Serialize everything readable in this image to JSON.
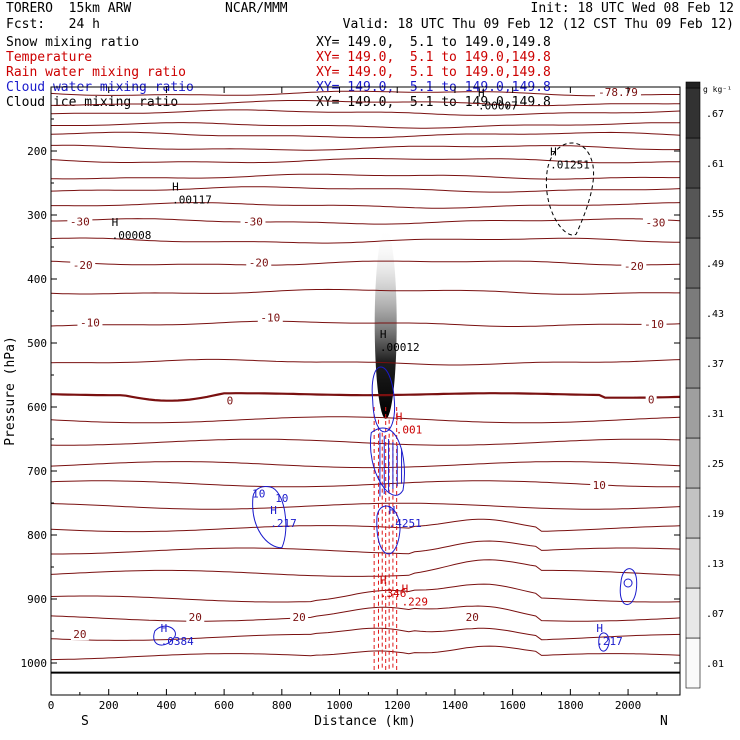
{
  "header": {
    "model": "TORERO  15km ARW",
    "center": "NCAR/MMM",
    "init": "Init: 18 UTC Wed 08 Feb 12",
    "fcst_label": "Fcst:",
    "fcst_value": "24 h",
    "valid": "Valid: 18 UTC Thu 09 Feb 12 (12 CST Thu 09 Feb 12)"
  },
  "fields": [
    {
      "name": "Snow mixing ratio",
      "xy": "XY= 149.0,  5.1 to 149.0,149.8",
      "color": "#000000"
    },
    {
      "name": "Temperature",
      "xy": "XY= 149.0,  5.1 to 149.0,149.8",
      "color": "#cc0000"
    },
    {
      "name": "Rain water mixing ratio",
      "xy": "XY= 149.0,  5.1 to 149.0,149.8",
      "color": "#cc0000"
    },
    {
      "name": "Cloud water mixing ratio",
      "xy": "XY= 149.0,  5.1 to 149.0,149.8",
      "color": "#1a1acc"
    },
    {
      "name": "Cloud ice mixing ratio",
      "xy": "XY= 149.0,  5.1 to 149.0,149.8",
      "color": "#000000"
    }
  ],
  "chart_data": {
    "type": "contour-cross-section",
    "xlabel": "Distance (km)",
    "ylabel": "Pressure (hPa)",
    "xlim": [
      0,
      2180
    ],
    "ylim": [
      1050,
      100
    ],
    "x_ticks": [
      0,
      200,
      400,
      600,
      800,
      1000,
      1200,
      1400,
      1600,
      1800,
      2000
    ],
    "y_ticks": [
      200,
      300,
      400,
      500,
      600,
      700,
      800,
      900,
      1000
    ],
    "x_end_labels": {
      "left": "S",
      "right": "N"
    },
    "colorbar": {
      "unit": "g kg⁻¹",
      "levels": [
        ".01",
        ".07",
        ".13",
        ".19",
        ".25",
        ".31",
        ".37",
        ".43",
        ".49",
        ".55",
        ".61",
        ".67"
      ]
    },
    "temperature_labels": [
      {
        "text": "-78.79",
        "x": 1965,
        "p": 108
      },
      {
        "text": "-30",
        "x": 100,
        "p": 310
      },
      {
        "text": "-30",
        "x": 700,
        "p": 310
      },
      {
        "text": "-30",
        "x": 2095,
        "p": 312
      },
      {
        "text": "-20",
        "x": 110,
        "p": 378
      },
      {
        "text": "-20",
        "x": 720,
        "p": 374
      },
      {
        "text": "-20",
        "x": 2020,
        "p": 380
      },
      {
        "text": "-10",
        "x": 135,
        "p": 468
      },
      {
        "text": "-10",
        "x": 760,
        "p": 460
      },
      {
        "text": "-10",
        "x": 2090,
        "p": 470
      },
      {
        "text": "0",
        "x": 620,
        "p": 590
      },
      {
        "text": "0",
        "x": 2080,
        "p": 588
      },
      {
        "text": "10",
        "x": 1900,
        "p": 722
      },
      {
        "text": "20",
        "x": 100,
        "p": 955
      },
      {
        "text": "20",
        "x": 500,
        "p": 928
      },
      {
        "text": "20",
        "x": 860,
        "p": 928
      },
      {
        "text": "20",
        "x": 1460,
        "p": 928
      }
    ],
    "maxima_labels": [
      {
        "text": "H",
        "value": ".00117",
        "x": 420,
        "p": 265,
        "color": "#000000"
      },
      {
        "text": "H",
        "value": ".00008",
        "x": 210,
        "p": 320,
        "color": "#000000"
      },
      {
        "text": "H",
        "value": ".01251",
        "x": 1730,
        "p": 210,
        "color": "#000000"
      },
      {
        "text": "H",
        "value": ".00012",
        "x": 1140,
        "p": 495,
        "color": "#000000"
      },
      {
        "text": "H",
        "value": ".00007",
        "x": 1480,
        "p": 118,
        "color": "#000000"
      },
      {
        "text": "H",
        "value": ".001",
        "x": 1195,
        "p": 624,
        "color": "#cc0000"
      },
      {
        "text": "H",
        "value": ".217",
        "x": 760,
        "p": 770,
        "color": "#1a1acc"
      },
      {
        "text": "H",
        "value": ".4251",
        "x": 1170,
        "p": 770,
        "color": "#1a1acc"
      },
      {
        "text": "H",
        "value": ".346",
        "x": 1140,
        "p": 880,
        "color": "#cc0000"
      },
      {
        "text": "H",
        "value": ".229",
        "x": 1215,
        "p": 893,
        "color": "#cc0000"
      },
      {
        "text": "H",
        "value": ".0384",
        "x": 380,
        "p": 955,
        "color": "#1a1acc"
      },
      {
        "text": "H",
        "value": ".217",
        "x": 1890,
        "p": 955,
        "color": "#1a1acc"
      }
    ],
    "cloud_water_labels": [
      {
        "text": "10",
        "x": 720,
        "p": 735
      },
      {
        "text": "10",
        "x": 800,
        "p": 742
      }
    ]
  }
}
